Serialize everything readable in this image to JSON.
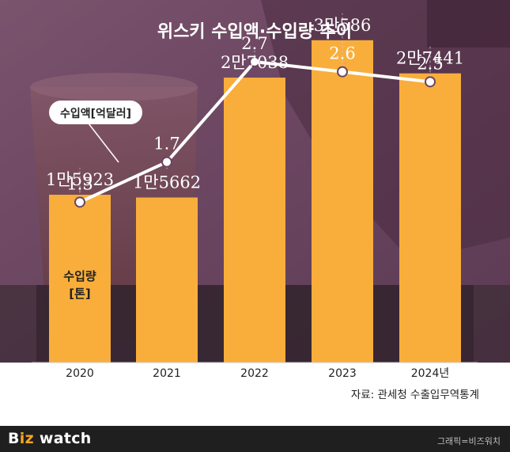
{
  "chart_data": {
    "type": "bar",
    "title": "위스키 수입액·수입량 추이",
    "categories": [
      "2020",
      "2021",
      "2022",
      "2023",
      "2024년"
    ],
    "bar_series": {
      "name": "수입량[톤]",
      "values": [
        15923,
        15662,
        27038,
        30586,
        27441
      ],
      "labels": [
        "1만5923",
        "1만5662",
        "2만7038",
        "3만586",
        "2만7441"
      ],
      "color": "#f9ae3b"
    },
    "line_series": {
      "name": "수입액[억달러]",
      "values": [
        1.3,
        1.7,
        2.7,
        2.6,
        2.5
      ],
      "labels": [
        "1.3",
        "1.7",
        "2.7",
        "2.6",
        "2.5"
      ],
      "color": "#ffffff"
    },
    "bar_ylim": [
      0,
      32000
    ],
    "line_ylim": [
      0,
      3.0
    ],
    "source": "자료: 관세청 수출입무역통계"
  },
  "footer": {
    "logo_prefix": "B",
    "logo_z": "iz",
    "logo_suffix": " watch",
    "credit": "그래픽=비즈워치"
  },
  "colors": {
    "photo_tint": "#6e4a64",
    "bar": "#f9ae3b",
    "line": "#ffffff"
  }
}
